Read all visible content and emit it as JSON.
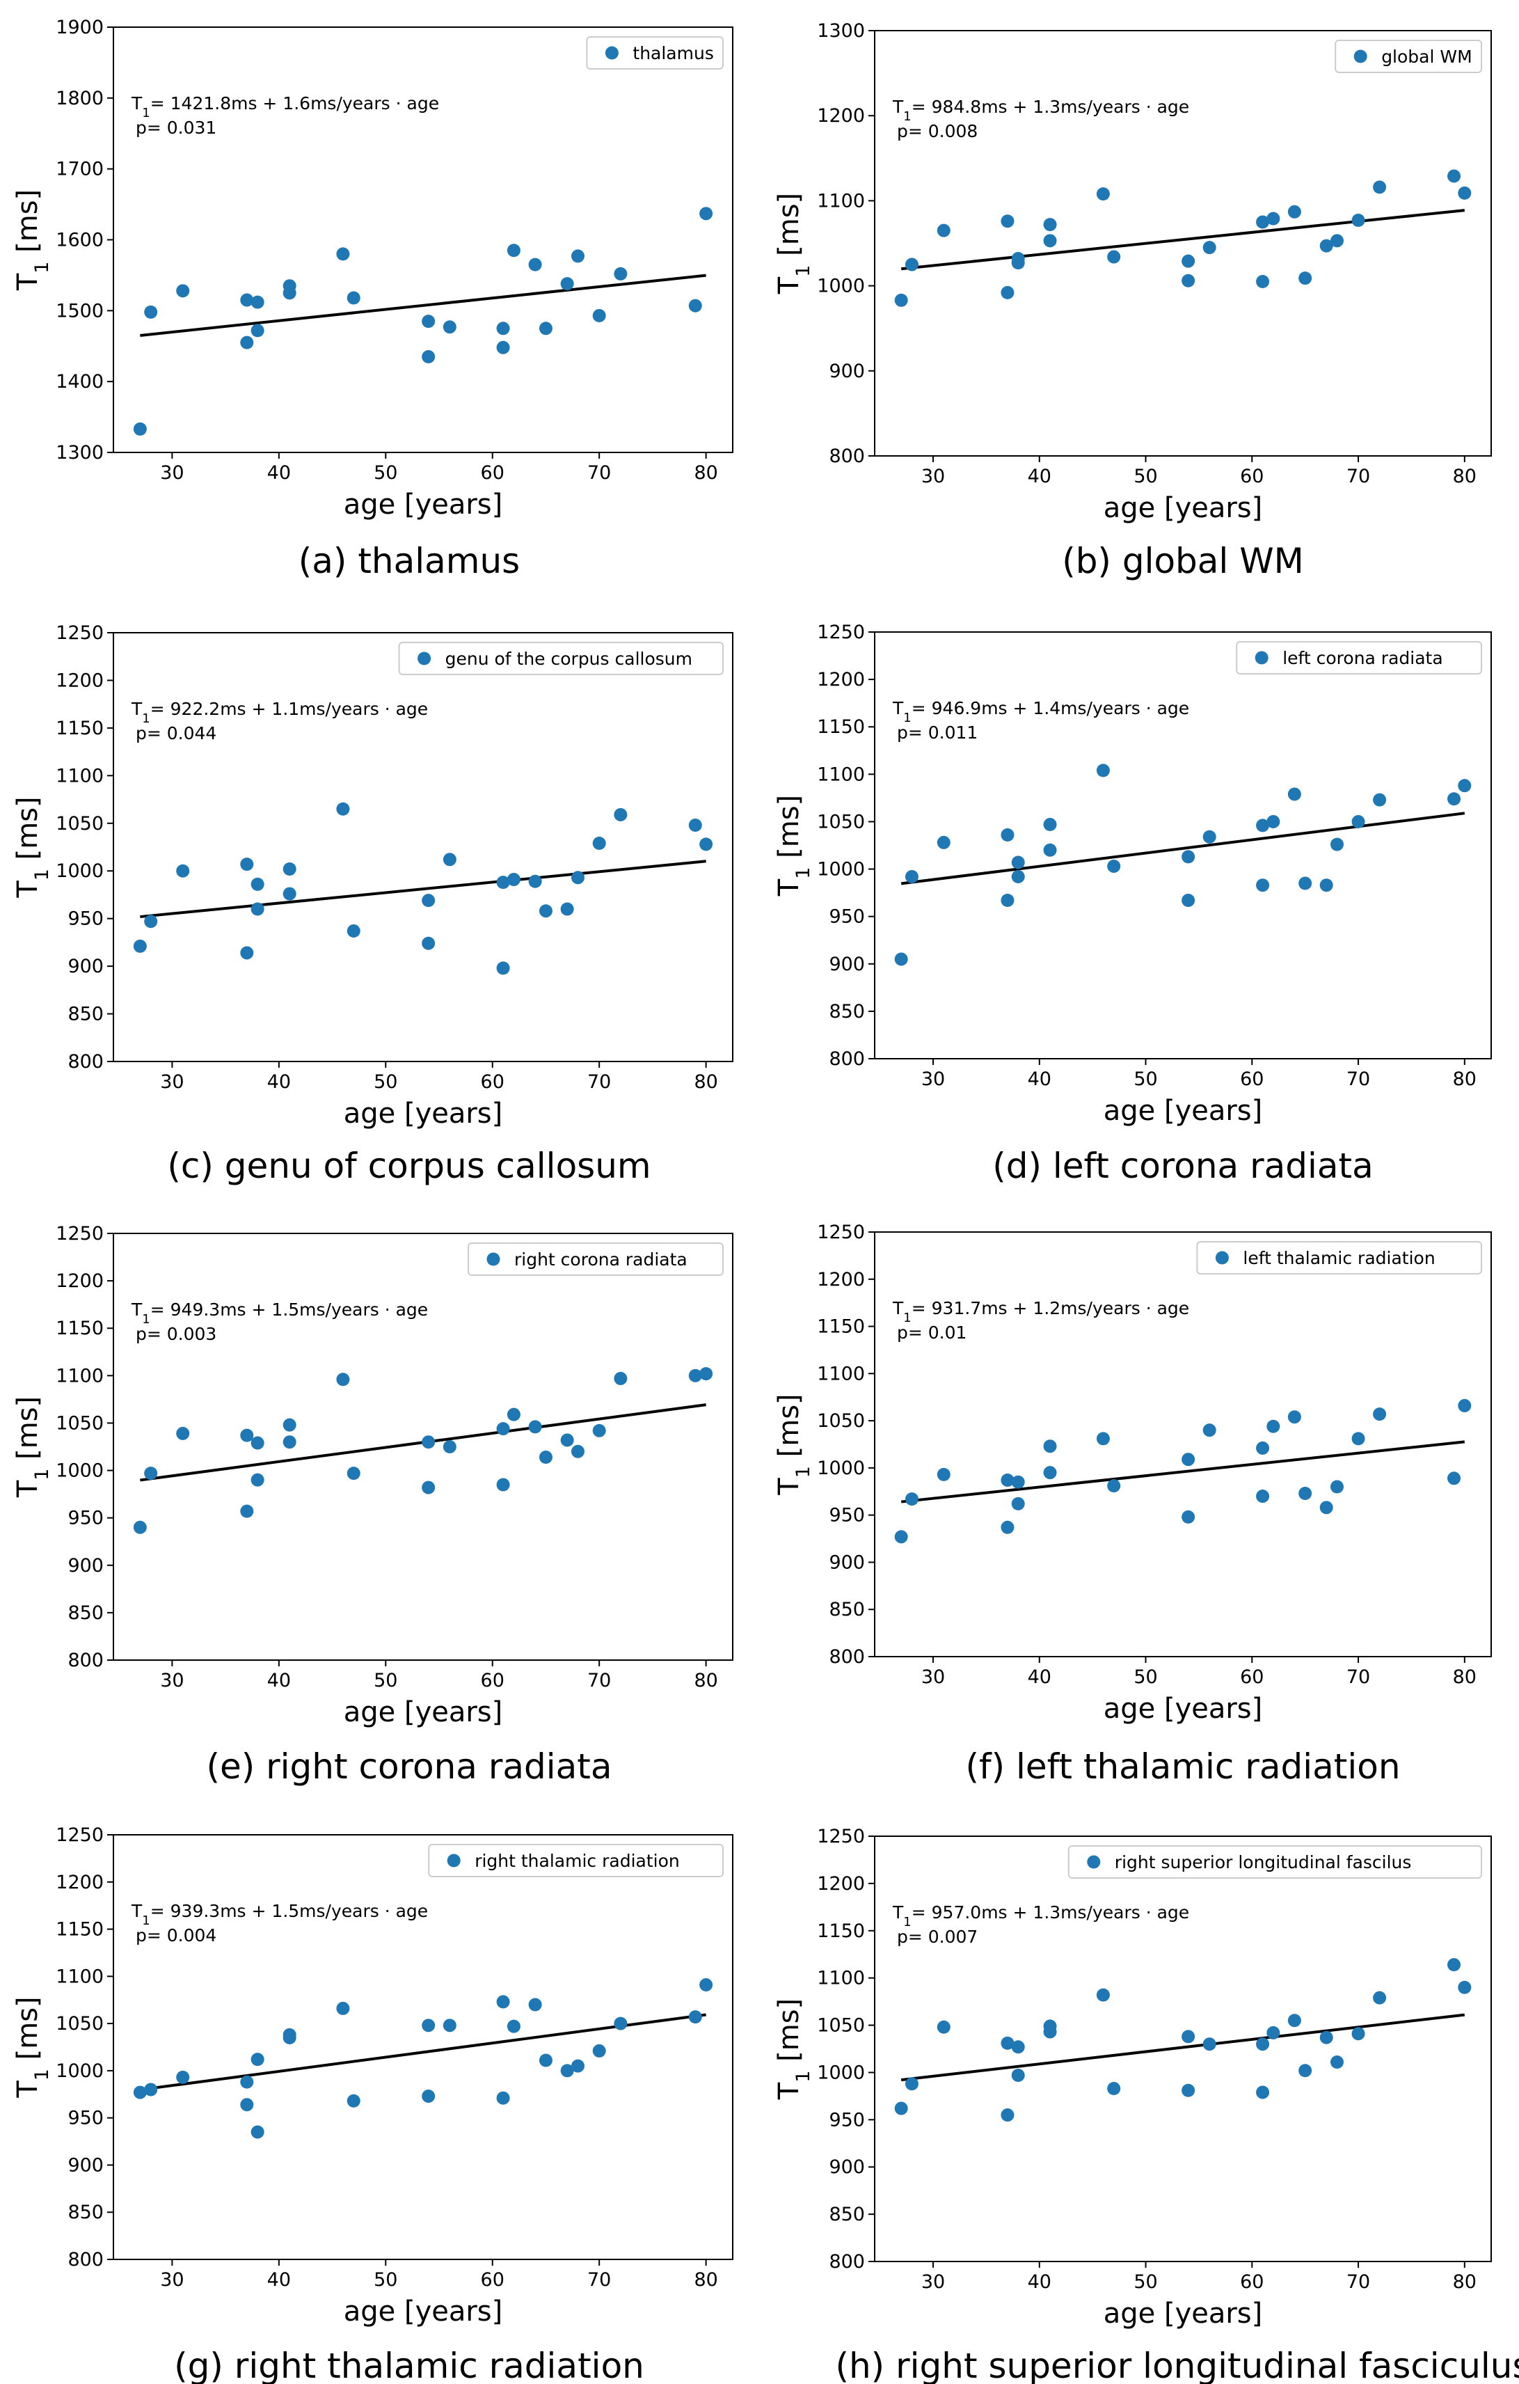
{
  "figure": {
    "x_label": "age [years]",
    "y_label": "T",
    "y_label_subscript": "1",
    "y_label_unit": " [ms]",
    "point_color": "#1f77b4",
    "line_color": "#000000"
  },
  "chart_data": [
    {
      "type": "scatter",
      "caption": "(a) thalamus",
      "legend": "thalamus",
      "xlabel": "age [years]",
      "ylabel": "T1 [ms]",
      "xlim": [
        24.5,
        82.5
      ],
      "ylim": [
        1300,
        1900
      ],
      "yticks": [
        1300,
        1400,
        1500,
        1600,
        1700,
        1800,
        1900
      ],
      "xticks": [
        30,
        40,
        50,
        60,
        70,
        80
      ],
      "equation_lead": "T",
      "equation_sub": "1",
      "equation": "= 1421.8ms +  1.6ms/years · age",
      "p_value": "p= 0.031",
      "fit": {
        "intercept": 1421.8,
        "slope": 1.6
      },
      "x": [
        27,
        28,
        31,
        37,
        37,
        38,
        38,
        41,
        41,
        46,
        47,
        54,
        54,
        56,
        61,
        61,
        62,
        64,
        65,
        67,
        68,
        70,
        72,
        79,
        80
      ],
      "y": [
        1333,
        1498,
        1528,
        1515,
        1455,
        1512,
        1472,
        1535,
        1525,
        1580,
        1518,
        1485,
        1435,
        1477,
        1475,
        1448,
        1585,
        1565,
        1475,
        1538,
        1577,
        1493,
        1552,
        1507,
        1637
      ]
    },
    {
      "type": "scatter",
      "caption": "(b) global WM",
      "legend": "global WM",
      "xlabel": "age [years]",
      "ylabel": "T1 [ms]",
      "xlim": [
        24.5,
        82.5
      ],
      "ylim": [
        800,
        1300
      ],
      "yticks": [
        800,
        900,
        1000,
        1100,
        1200,
        1300
      ],
      "xticks": [
        30,
        40,
        50,
        60,
        70,
        80
      ],
      "equation_lead": "T",
      "equation_sub": "1",
      "equation": "= 984.8ms +  1.3ms/years · age",
      "p_value": "p= 0.008",
      "fit": {
        "intercept": 984.8,
        "slope": 1.3
      },
      "x": [
        27,
        28,
        31,
        37,
        37,
        38,
        38,
        41,
        41,
        46,
        47,
        54,
        54,
        56,
        61,
        61,
        62,
        64,
        65,
        67,
        68,
        70,
        72,
        79,
        80
      ],
      "y": [
        983,
        1025,
        1065,
        1076,
        992,
        1032,
        1027,
        1072,
        1053,
        1108,
        1034,
        1029,
        1006,
        1045,
        1075,
        1005,
        1079,
        1087,
        1009,
        1047,
        1053,
        1077,
        1116,
        1129,
        1109
      ]
    },
    {
      "type": "scatter",
      "caption": "(c) genu of corpus callosum",
      "legend": "genu of the corpus callosum",
      "xlabel": "age [years]",
      "ylabel": "T1 [ms]",
      "xlim": [
        24.5,
        82.5
      ],
      "ylim": [
        800,
        1250
      ],
      "yticks": [
        800,
        850,
        900,
        950,
        1000,
        1050,
        1100,
        1150,
        1200,
        1250
      ],
      "xticks": [
        30,
        40,
        50,
        60,
        70,
        80
      ],
      "equation_lead": "T",
      "equation_sub": "1",
      "equation": "= 922.2ms +  1.1ms/years · age",
      "p_value": "p= 0.044",
      "fit": {
        "intercept": 922.2,
        "slope": 1.1
      },
      "x": [
        27,
        28,
        31,
        37,
        37,
        38,
        38,
        41,
        41,
        46,
        47,
        54,
        54,
        56,
        61,
        61,
        62,
        64,
        65,
        67,
        68,
        70,
        72,
        79,
        80
      ],
      "y": [
        921,
        947,
        1000,
        1007,
        914,
        986,
        960,
        1002,
        976,
        1065,
        937,
        969,
        924,
        1012,
        988,
        898,
        991,
        989,
        958,
        960,
        993,
        1029,
        1059,
        1048,
        1028
      ]
    },
    {
      "type": "scatter",
      "caption": "(d) left corona radiata",
      "legend": "left corona radiata",
      "xlabel": "age [years]",
      "ylabel": "T1 [ms]",
      "xlim": [
        24.5,
        82.5
      ],
      "ylim": [
        800,
        1250
      ],
      "yticks": [
        800,
        850,
        900,
        950,
        1000,
        1050,
        1100,
        1150,
        1200,
        1250
      ],
      "xticks": [
        30,
        40,
        50,
        60,
        70,
        80
      ],
      "equation_lead": "T",
      "equation_sub": "1",
      "equation": "= 946.9ms +  1.4ms/years · age",
      "p_value": "p= 0.011",
      "fit": {
        "intercept": 946.9,
        "slope": 1.4
      },
      "x": [
        27,
        28,
        31,
        37,
        37,
        38,
        38,
        41,
        41,
        46,
        47,
        54,
        54,
        56,
        61,
        61,
        62,
        64,
        65,
        67,
        68,
        70,
        72,
        79,
        80
      ],
      "y": [
        905,
        992,
        1028,
        1036,
        967,
        1007,
        992,
        1047,
        1020,
        1104,
        1003,
        1013,
        967,
        1034,
        1046,
        983,
        1050,
        1079,
        985,
        983,
        1026,
        1050,
        1073,
        1074,
        1088
      ]
    },
    {
      "type": "scatter",
      "caption": "(e) right corona radiata",
      "legend": "right corona radiata",
      "xlabel": "age [years]",
      "ylabel": "T1 [ms]",
      "xlim": [
        24.5,
        82.5
      ],
      "ylim": [
        800,
        1250
      ],
      "yticks": [
        800,
        850,
        900,
        950,
        1000,
        1050,
        1100,
        1150,
        1200,
        1250
      ],
      "xticks": [
        30,
        40,
        50,
        60,
        70,
        80
      ],
      "equation_lead": "T",
      "equation_sub": "1",
      "equation": "= 949.3ms +  1.5ms/years · age",
      "p_value": "p= 0.003",
      "fit": {
        "intercept": 949.3,
        "slope": 1.5
      },
      "x": [
        27,
        28,
        31,
        37,
        37,
        38,
        38,
        41,
        41,
        46,
        47,
        54,
        54,
        56,
        61,
        61,
        62,
        64,
        65,
        67,
        68,
        70,
        72,
        79,
        80
      ],
      "y": [
        940,
        997,
        1039,
        1037,
        957,
        1029,
        990,
        1048,
        1030,
        1096,
        997,
        1030,
        982,
        1025,
        1044,
        985,
        1059,
        1046,
        1014,
        1032,
        1020,
        1042,
        1097,
        1100,
        1102
      ]
    },
    {
      "type": "scatter",
      "caption": "(f) left thalamic radiation",
      "legend": "left thalamic radiation",
      "xlabel": "age [years]",
      "ylabel": "T1 [ms]",
      "xlim": [
        24.5,
        82.5
      ],
      "ylim": [
        800,
        1250
      ],
      "yticks": [
        800,
        850,
        900,
        950,
        1000,
        1050,
        1100,
        1150,
        1200,
        1250
      ],
      "xticks": [
        30,
        40,
        50,
        60,
        70,
        80
      ],
      "equation_lead": "T",
      "equation_sub": "1",
      "equation": "= 931.7ms +  1.2ms/years · age",
      "p_value": "p= 0.01",
      "fit": {
        "intercept": 931.7,
        "slope": 1.2
      },
      "x": [
        27,
        28,
        31,
        37,
        37,
        38,
        38,
        41,
        41,
        46,
        47,
        54,
        54,
        56,
        61,
        61,
        62,
        64,
        65,
        67,
        68,
        70,
        72,
        79,
        80
      ],
      "y": [
        927,
        967,
        993,
        987,
        937,
        985,
        962,
        1023,
        995,
        1031,
        981,
        1009,
        948,
        1040,
        1021,
        970,
        1044,
        1054,
        973,
        958,
        980,
        1031,
        1057,
        989,
        1066
      ]
    },
    {
      "type": "scatter",
      "caption": "(g) right thalamic radiation",
      "legend": "right thalamic radiation",
      "xlabel": "age [years]",
      "ylabel": "T1 [ms]",
      "xlim": [
        24.5,
        82.5
      ],
      "ylim": [
        800,
        1250
      ],
      "yticks": [
        800,
        850,
        900,
        950,
        1000,
        1050,
        1100,
        1150,
        1200,
        1250
      ],
      "xticks": [
        30,
        40,
        50,
        60,
        70,
        80
      ],
      "equation_lead": "T",
      "equation_sub": "1",
      "equation": "= 939.3ms +  1.5ms/years · age",
      "p_value": "p= 0.004",
      "fit": {
        "intercept": 939.3,
        "slope": 1.5
      },
      "x": [
        27,
        28,
        31,
        37,
        37,
        38,
        38,
        41,
        41,
        46,
        47,
        54,
        54,
        56,
        61,
        61,
        62,
        64,
        65,
        67,
        68,
        70,
        72,
        79,
        80
      ],
      "y": [
        977,
        980,
        993,
        988,
        964,
        1012,
        935,
        1038,
        1035,
        1066,
        968,
        1048,
        973,
        1048,
        1073,
        971,
        1047,
        1070,
        1011,
        1000,
        1005,
        1021,
        1050,
        1057,
        1091
      ]
    },
    {
      "type": "scatter",
      "caption": "(h) right superior longitudinal fasciculus",
      "legend": "right superior longitudinal fascilus",
      "xlabel": "age [years]",
      "ylabel": "T1 [ms]",
      "xlim": [
        24.5,
        82.5
      ],
      "ylim": [
        800,
        1250
      ],
      "yticks": [
        800,
        850,
        900,
        950,
        1000,
        1050,
        1100,
        1150,
        1200,
        1250
      ],
      "xticks": [
        30,
        40,
        50,
        60,
        70,
        80
      ],
      "equation_lead": "T",
      "equation_sub": "1",
      "equation": "= 957.0ms +  1.3ms/years · age",
      "p_value": "p= 0.007",
      "fit": {
        "intercept": 957.0,
        "slope": 1.3
      },
      "x": [
        27,
        28,
        31,
        37,
        37,
        38,
        38,
        41,
        41,
        46,
        47,
        54,
        54,
        56,
        61,
        61,
        62,
        64,
        65,
        67,
        68,
        70,
        72,
        79,
        80
      ],
      "y": [
        962,
        988,
        1048,
        1031,
        955,
        1027,
        997,
        1049,
        1043,
        1082,
        983,
        1038,
        981,
        1030,
        1030,
        979,
        1042,
        1055,
        1002,
        1037,
        1011,
        1041,
        1079,
        1114,
        1090
      ]
    }
  ]
}
